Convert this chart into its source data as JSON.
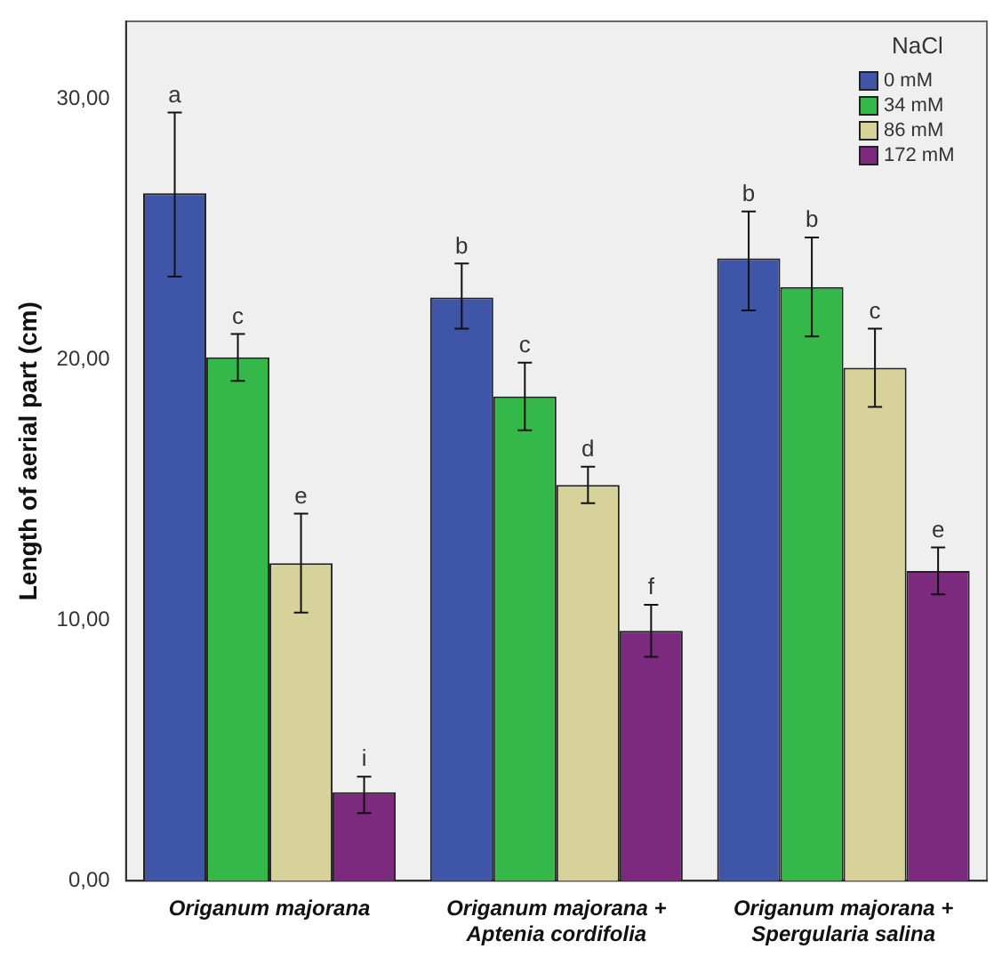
{
  "chart_data": {
    "type": "bar",
    "ylabel": "Length of aerial part (cm)",
    "legend_title": "NaCl",
    "legend": "top right",
    "grid": false,
    "categories": [
      "Origanum majorana",
      "Origanum majorana + Aptenia cordifolia",
      "Origanum majorana + Spergularia salina"
    ],
    "ylim": [
      0,
      33
    ],
    "yticks": [
      {
        "value": 0,
        "label": "0,00"
      },
      {
        "value": 10,
        "label": "10,00"
      },
      {
        "value": 20,
        "label": "20,00"
      },
      {
        "value": 30,
        "label": "30,00"
      }
    ],
    "series": [
      {
        "name": "0 mM",
        "color": "#3f55a8",
        "values": [
          26.4,
          22.4,
          23.9
        ],
        "errors": [
          [
            23.2,
            29.5
          ],
          [
            21.2,
            23.7
          ],
          [
            21.9,
            25.7
          ]
        ]
      },
      {
        "name": "34 mM",
        "color": "#35b84a",
        "values": [
          20.1,
          18.6,
          22.8
        ],
        "errors": [
          [
            19.2,
            21.0
          ],
          [
            17.3,
            19.9
          ],
          [
            20.9,
            24.7
          ]
        ]
      },
      {
        "name": "86 mM",
        "color": "#d6d29a",
        "values": [
          12.2,
          15.2,
          19.7
        ],
        "errors": [
          [
            10.3,
            14.1
          ],
          [
            14.5,
            15.9
          ],
          [
            18.2,
            21.2
          ]
        ]
      },
      {
        "name": "172 mM",
        "color": "#7b2a7e",
        "values": [
          3.4,
          9.6,
          11.9
        ],
        "errors": [
          [
            2.6,
            4.0
          ],
          [
            8.6,
            10.6
          ],
          [
            11.0,
            12.8
          ]
        ]
      }
    ],
    "annotations": [
      "a",
      "c",
      "e",
      "i",
      "b",
      "c",
      "d",
      "f",
      "b",
      "b",
      "c",
      "e"
    ]
  }
}
